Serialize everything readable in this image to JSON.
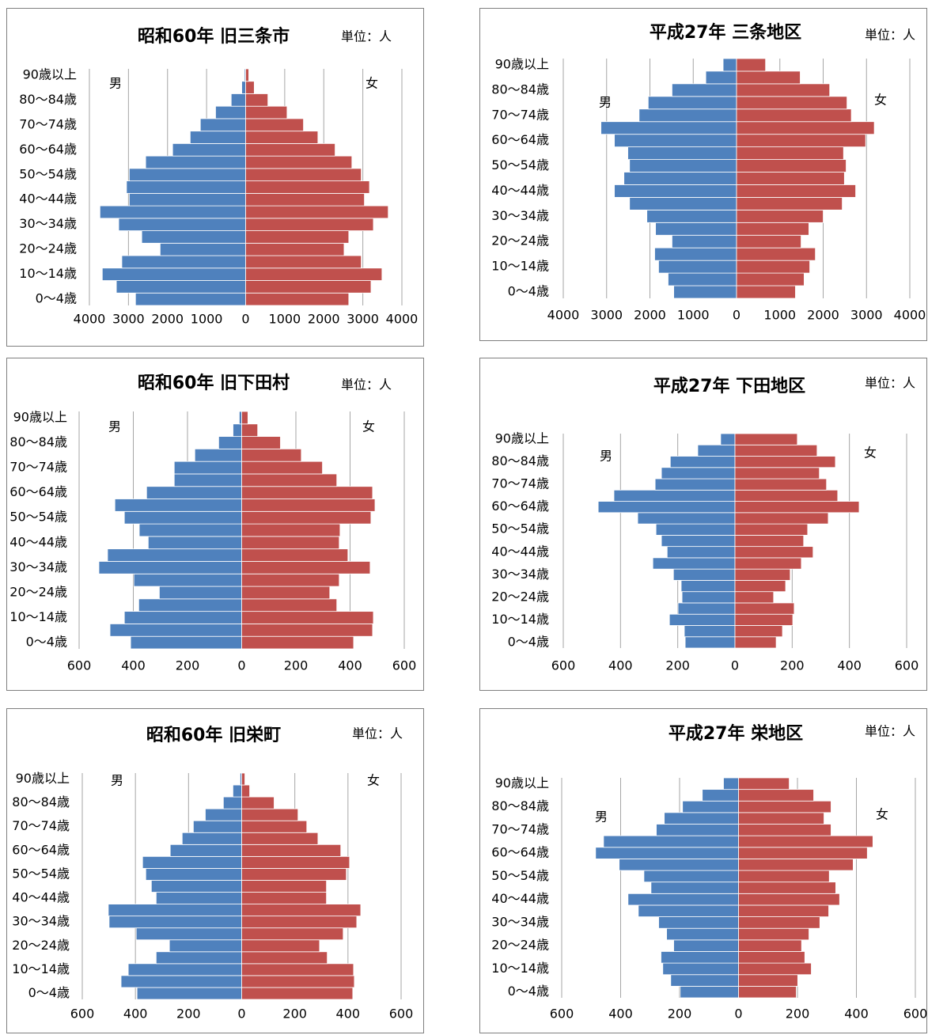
{
  "chart_data": [
    {
      "type": "bar",
      "title": "昭和60年 旧三条市",
      "unit": "単位：人",
      "categories": [
        "0〜4歳",
        null,
        "10〜14歳",
        null,
        "20〜24歳",
        null,
        "30〜34歳",
        null,
        "40〜44歳",
        null,
        "50〜54歳",
        null,
        "60〜64歳",
        null,
        "70〜74歳",
        null,
        "80〜84歳",
        null,
        "90歳以上"
      ],
      "series": [
        {
          "name": "男",
          "color": "#4f81bd",
          "values": [
            -2820,
            -3310,
            -3670,
            -3170,
            -2190,
            -2660,
            -3250,
            -3730,
            -2980,
            -3050,
            -2980,
            -2560,
            -1870,
            -1420,
            -1160,
            -770,
            -370,
            -100,
            -30
          ]
        },
        {
          "name": "女",
          "color": "#c0504d",
          "values": [
            2640,
            3210,
            3490,
            2960,
            2520,
            2640,
            3270,
            3650,
            3040,
            3170,
            2960,
            2720,
            2290,
            1850,
            1480,
            1060,
            570,
            220,
            80
          ]
        }
      ],
      "xlim": [
        -4000,
        4000
      ],
      "xticks": [
        {
          "value": -4000,
          "label": "4000"
        },
        {
          "value": -3000,
          "label": "3000"
        },
        {
          "value": -2000,
          "label": "2000"
        },
        {
          "value": -1000,
          "label": "1000"
        },
        0,
        1000,
        2000,
        3000,
        4000
      ],
      "grid": true
    },
    {
      "type": "bar",
      "title": "平成27年 三条地区",
      "unit": "単位：人",
      "categories": [
        "0〜4歳",
        null,
        "10〜14歳",
        null,
        "20〜24歳",
        null,
        "30〜34歳",
        null,
        "40〜44歳",
        null,
        "50〜54歳",
        null,
        "60〜64歳",
        null,
        "70〜74歳",
        null,
        "80〜84歳",
        null,
        "90歳以上"
      ],
      "series": [
        {
          "name": "男",
          "color": "#4f81bd",
          "values": [
            -1450,
            -1580,
            -1800,
            -1890,
            -1490,
            -1870,
            -2070,
            -2470,
            -2820,
            -2600,
            -2470,
            -2510,
            -2820,
            -3130,
            -2250,
            -2040,
            -1490,
            -710,
            -310
          ]
        },
        {
          "name": "女",
          "color": "#c0504d",
          "values": [
            1360,
            1560,
            1690,
            1820,
            1490,
            1670,
            2000,
            2440,
            2750,
            2490,
            2530,
            2470,
            2980,
            3180,
            2650,
            2550,
            2150,
            1470,
            670
          ]
        }
      ],
      "xlim": [
        -4000,
        4000
      ],
      "xticks": [
        {
          "value": -4000,
          "label": "4000"
        },
        {
          "value": -3000,
          "label": "3000"
        },
        {
          "value": -2000,
          "label": "2000"
        },
        {
          "value": -1000,
          "label": "1000"
        },
        0,
        1000,
        2000,
        3000,
        4000
      ],
      "grid": true
    },
    {
      "type": "bar",
      "title": "昭和60年 旧下田村",
      "unit": "単位：人",
      "categories": [
        "0〜4歳",
        null,
        "10〜14歳",
        null,
        "20〜24歳",
        null,
        "30〜34歳",
        null,
        "40〜44歳",
        null,
        "50〜54歳",
        null,
        "60〜64歳",
        null,
        "70〜74歳",
        null,
        "80〜84歳",
        null,
        "90歳以上"
      ],
      "series": [
        {
          "name": "男",
          "color": "#4f81bd",
          "values": [
            -410,
            -486,
            -433,
            -380,
            -304,
            -398,
            -527,
            -495,
            -345,
            -378,
            -433,
            -468,
            -351,
            -249,
            -249,
            -173,
            -85,
            -32,
            -9
          ]
        },
        {
          "name": "女",
          "color": "#c0504d",
          "values": [
            413,
            483,
            486,
            351,
            325,
            360,
            474,
            392,
            360,
            363,
            477,
            492,
            483,
            351,
            298,
            220,
            143,
            59,
            23
          ]
        }
      ],
      "xlim": [
        -600,
        600
      ],
      "xticks": [
        {
          "value": -600,
          "label": "600"
        },
        {
          "value": -400,
          "label": "400"
        },
        {
          "value": -200,
          "label": "200"
        },
        0,
        200,
        400,
        600
      ],
      "grid": true
    },
    {
      "type": "bar",
      "title": "平成27年 下田地区",
      "unit": "単位：人",
      "categories": [
        "0〜4歳",
        null,
        "10〜14歳",
        null,
        "20〜24歳",
        null,
        "30〜34歳",
        null,
        "40〜44歳",
        null,
        "50〜54歳",
        null,
        "60〜64歳",
        null,
        "70〜74歳",
        null,
        "80〜84歳",
        null,
        "90歳以上"
      ],
      "series": [
        {
          "name": "男",
          "color": "#4f81bd",
          "values": [
            -174,
            -177,
            -229,
            -199,
            -185,
            -188,
            -215,
            -287,
            -237,
            -257,
            -276,
            -340,
            -478,
            -423,
            -279,
            -257,
            -226,
            -130,
            -50
          ]
        },
        {
          "name": "女",
          "color": "#c0504d",
          "values": [
            144,
            166,
            202,
            207,
            135,
            177,
            193,
            232,
            273,
            240,
            254,
            326,
            434,
            359,
            320,
            295,
            351,
            287,
            218
          ]
        }
      ],
      "xlim": [
        -600,
        600
      ],
      "xticks": [
        {
          "value": -600,
          "label": "600"
        },
        {
          "value": -400,
          "label": "400"
        },
        {
          "value": -200,
          "label": "200"
        },
        0,
        200,
        400,
        600
      ],
      "grid": true
    },
    {
      "type": "bar",
      "title": "昭和60年 旧栄町",
      "unit": "単位：人",
      "categories": [
        "0〜4歳",
        null,
        "10〜14歳",
        null,
        "20〜24歳",
        null,
        "30〜34歳",
        null,
        "40〜44歳",
        null,
        "50〜54歳",
        null,
        "60〜64歳",
        null,
        "70〜74歳",
        null,
        "80〜84歳",
        null,
        "90歳以上"
      ],
      "series": [
        {
          "name": "男",
          "color": "#4f81bd",
          "values": [
            -394,
            -454,
            -427,
            -322,
            -272,
            -397,
            -499,
            -502,
            -322,
            -340,
            -361,
            -373,
            -269,
            -224,
            -182,
            -137,
            -69,
            -33,
            -6
          ]
        },
        {
          "name": "女",
          "color": "#c0504d",
          "values": [
            418,
            424,
            421,
            322,
            293,
            382,
            433,
            448,
            319,
            319,
            394,
            406,
            373,
            287,
            245,
            212,
            122,
            30,
            12
          ]
        }
      ],
      "xlim": [
        -600,
        600
      ],
      "xticks": [
        {
          "value": -600,
          "label": "600"
        },
        {
          "value": -400,
          "label": "400"
        },
        {
          "value": -200,
          "label": "200"
        },
        0,
        200,
        400,
        600
      ],
      "grid": true
    },
    {
      "type": "bar",
      "title": "平成27年 栄地区",
      "unit": "単位：人",
      "categories": [
        "0〜4歳",
        null,
        "10〜14歳",
        null,
        "20〜24歳",
        null,
        "30〜34歳",
        null,
        "40〜44歳",
        null,
        "50〜54歳",
        null,
        "60〜64歳",
        null,
        "70〜74歳",
        null,
        "80〜84歳",
        null,
        "90歳以上"
      ],
      "series": [
        {
          "name": "男",
          "color": "#4f81bd",
          "values": [
            -198,
            -230,
            -257,
            -263,
            -220,
            -244,
            -271,
            -340,
            -375,
            -297,
            -321,
            -405,
            -485,
            -458,
            -279,
            -252,
            -190,
            -123,
            -51
          ]
        },
        {
          "name": "女",
          "color": "#c0504d",
          "values": [
            196,
            201,
            247,
            225,
            214,
            239,
            276,
            306,
            343,
            330,
            308,
            389,
            437,
            456,
            314,
            290,
            314,
            255,
            172
          ]
        }
      ],
      "xlim": [
        -600,
        600
      ],
      "xticks": [
        {
          "value": -600,
          "label": "600"
        },
        {
          "value": -400,
          "label": "400"
        },
        {
          "value": -200,
          "label": "200"
        },
        0,
        200,
        400,
        600
      ],
      "grid": true
    }
  ]
}
